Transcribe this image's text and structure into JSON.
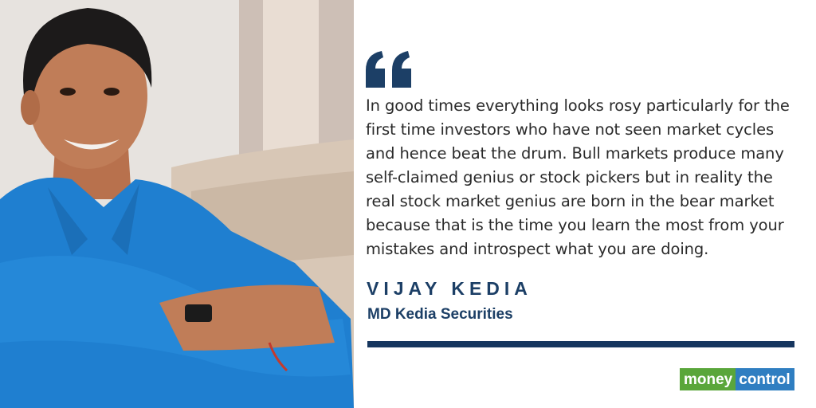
{
  "quote": {
    "lines": [
      "In good times everything looks rosy particularly for the",
      "first time investors who have not seen market cycles",
      "and hence beat the drum. Bull markets produce many",
      "self-claimed genius or stock pickers but in reality the",
      "real stock market genius are born in the bear market",
      "because that is the time you learn the most from your",
      "mistakes and introspect what you are doing."
    ]
  },
  "author": {
    "name": "VIJAY KEDIA",
    "title": "MD Kedia Securities"
  },
  "logo": {
    "part1": "money",
    "part2": "control"
  },
  "colors": {
    "accent": "#1c3f66",
    "logo_green": "#5aa63a",
    "logo_blue": "#2f7ec1"
  },
  "icons": {
    "quote": "quote-mark-icon"
  }
}
